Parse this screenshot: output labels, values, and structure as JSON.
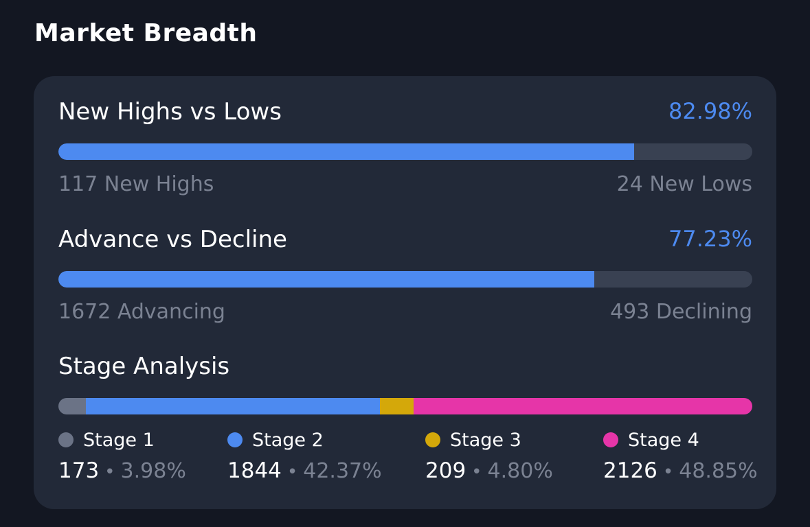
{
  "page": {
    "title": "Market Breadth"
  },
  "highs_lows": {
    "title": "New Highs vs Lows",
    "percent": "82.98%",
    "fill_fraction": 0.8298,
    "left_label": "117 New Highs",
    "right_label": "24 New Lows"
  },
  "advance_decline": {
    "title": "Advance vs Decline",
    "percent": "77.23%",
    "fill_fraction": 0.7723,
    "left_label": "1672 Advancing",
    "right_label": "493 Declining"
  },
  "stage_analysis": {
    "title": "Stage Analysis",
    "stages": [
      {
        "label": "Stage 1",
        "count": "173",
        "percent": "3.98%",
        "share": 0.0398,
        "color": "#6b7386"
      },
      {
        "label": "Stage 2",
        "count": "1844",
        "percent": "42.37%",
        "share": 0.4237,
        "color": "#4d8af0"
      },
      {
        "label": "Stage 3",
        "count": "209",
        "percent": "4.80%",
        "share": 0.048,
        "color": "#d4a80a"
      },
      {
        "label": "Stage 4",
        "count": "2126",
        "percent": "48.85%",
        "share": 0.4885,
        "color": "#e635a8"
      }
    ],
    "separator": "•"
  },
  "colors": {
    "background": "#131722",
    "card": "#222938",
    "accent": "#4d8af0",
    "track": "#394152",
    "muted_text": "#7b8292"
  }
}
